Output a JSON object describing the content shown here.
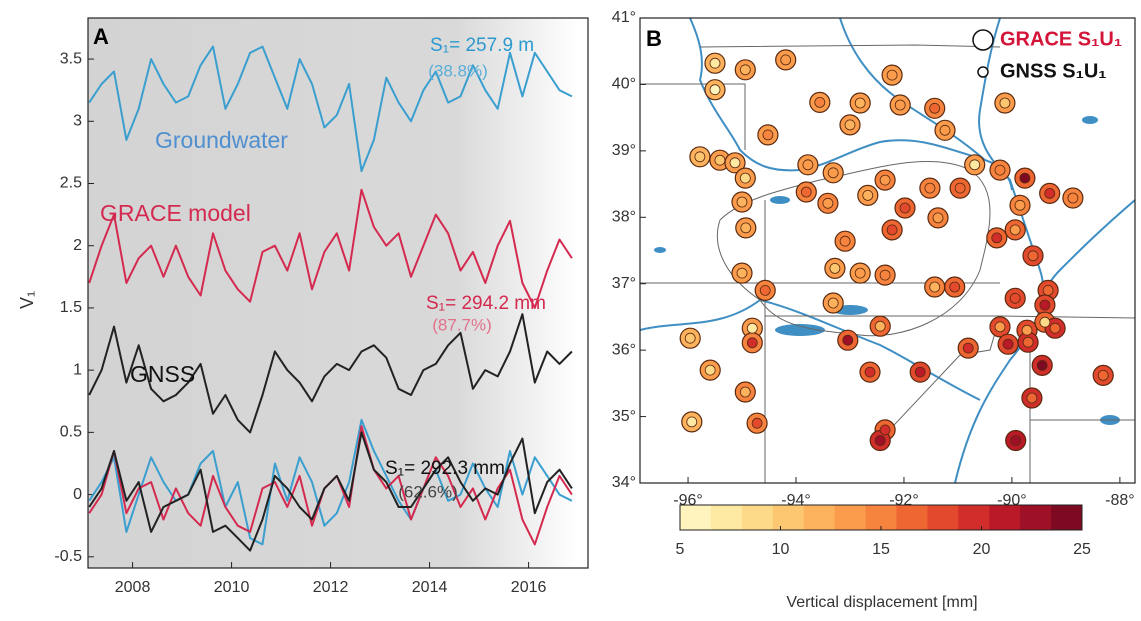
{
  "chart_data": [
    {
      "type": "line",
      "panel_label": "A",
      "y_label": "V₁",
      "xlim": [
        2007.1,
        2017.2
      ],
      "xticks": [
        2008,
        2010,
        2012,
        2014,
        2016
      ],
      "ylim": [
        -0.59,
        3.83
      ],
      "yticks": [
        -0.5,
        0,
        0.5,
        1,
        1.5,
        2,
        2.5,
        3,
        3.5
      ],
      "x": [
        2007.125,
        2007.375,
        2007.625,
        2007.875,
        2008.125,
        2008.375,
        2008.625,
        2008.875,
        2009.125,
        2009.375,
        2009.625,
        2009.875,
        2010.125,
        2010.375,
        2010.625,
        2010.875,
        2011.125,
        2011.375,
        2011.625,
        2011.875,
        2012.125,
        2012.375,
        2012.625,
        2012.875,
        2013.125,
        2013.375,
        2013.625,
        2013.875,
        2014.125,
        2014.375,
        2014.625,
        2014.875,
        2015.125,
        2015.375,
        2015.625,
        2015.875,
        2016.125,
        2016.375,
        2016.625,
        2016.875
      ],
      "series": [
        {
          "name": "Groundwater",
          "color": "#3a9fcf",
          "label_color": "#4f8fd0",
          "values": [
            3.15,
            3.3,
            3.4,
            2.85,
            3.1,
            3.5,
            3.3,
            3.15,
            3.2,
            3.45,
            3.6,
            3.1,
            3.3,
            3.55,
            3.6,
            3.35,
            3.1,
            3.5,
            3.3,
            2.95,
            3.05,
            3.3,
            2.6,
            2.85,
            3.35,
            3.15,
            3.0,
            3.25,
            3.4,
            3.15,
            3.2,
            3.45,
            3.25,
            3.1,
            3.55,
            3.2,
            3.55,
            3.4,
            3.25,
            3.2
          ]
        },
        {
          "name": "GRACE model",
          "color": "#d42a4f",
          "label_color": "#d42a4f",
          "values": [
            1.7,
            2.0,
            2.25,
            1.7,
            1.9,
            2.0,
            1.75,
            2.0,
            1.75,
            1.6,
            2.1,
            1.8,
            1.65,
            1.55,
            1.95,
            2.0,
            1.8,
            2.1,
            1.65,
            1.95,
            2.1,
            1.8,
            2.45,
            2.15,
            2.0,
            2.1,
            1.75,
            2.0,
            2.25,
            2.1,
            1.8,
            1.95,
            1.7,
            2.0,
            2.2,
            1.7,
            1.5,
            1.8,
            2.05,
            1.9
          ]
        },
        {
          "name": "GNSS",
          "color": "#222222",
          "label_color": "#111111",
          "values": [
            0.8,
            1.0,
            1.35,
            0.9,
            1.2,
            0.85,
            0.75,
            0.8,
            0.9,
            1.05,
            0.65,
            0.8,
            0.6,
            0.5,
            0.8,
            1.15,
            1.0,
            0.9,
            0.75,
            0.95,
            1.05,
            1.0,
            1.15,
            1.2,
            1.1,
            0.85,
            0.8,
            1.0,
            1.05,
            1.2,
            1.3,
            0.85,
            1.0,
            0.95,
            1.15,
            1.45,
            0.9,
            1.15,
            1.05,
            1.15
          ]
        },
        {
          "color": "#3a9fcf",
          "values": [
            -0.05,
            0.1,
            0.3,
            -0.3,
            0.0,
            0.3,
            0.1,
            -0.05,
            0.0,
            0.25,
            0.35,
            -0.1,
            0.1,
            -0.35,
            -0.4,
            0.25,
            -0.05,
            0.3,
            0.1,
            -0.25,
            -0.15,
            0.1,
            0.6,
            0.35,
            0.15,
            -0.05,
            -0.2,
            0.05,
            0.2,
            -0.05,
            0.0,
            0.25,
            0.05,
            -0.1,
            0.35,
            0.0,
            0.3,
            0.15,
            0.0,
            -0.05
          ]
        },
        {
          "color": "#d42a4f",
          "values": [
            -0.15,
            0.0,
            0.35,
            -0.15,
            0.05,
            0.1,
            -0.2,
            0.05,
            -0.15,
            -0.25,
            0.15,
            -0.1,
            -0.25,
            -0.3,
            0.05,
            0.1,
            -0.1,
            0.15,
            -0.25,
            0.05,
            0.15,
            -0.1,
            0.55,
            0.2,
            0.05,
            0.15,
            -0.2,
            0.05,
            0.3,
            0.15,
            -0.1,
            0.05,
            -0.2,
            0.05,
            0.2,
            -0.2,
            -0.4,
            -0.1,
            0.15,
            0.0
          ]
        },
        {
          "color": "#222222",
          "values": [
            -0.1,
            0.05,
            0.35,
            -0.05,
            0.1,
            -0.3,
            -0.1,
            -0.05,
            0.0,
            0.2,
            -0.3,
            -0.25,
            -0.35,
            -0.45,
            -0.2,
            0.15,
            0.05,
            -0.1,
            -0.2,
            0.05,
            0.15,
            -0.05,
            0.5,
            0.2,
            0.1,
            -0.1,
            -0.1,
            0.05,
            0.2,
            0.3,
            0.1,
            -0.05,
            0.05,
            0.0,
            0.25,
            0.45,
            -0.15,
            0.1,
            0.2,
            0.05
          ]
        }
      ],
      "annotations": [
        {
          "text": "S₁= 257.9 m",
          "color": "#2a9ad0"
        },
        {
          "text": "(38.8%)",
          "color": "#5aaed8"
        },
        {
          "text": "S₁= 294.2 mm",
          "color": "#d42a4f"
        },
        {
          "text": "(87.7%)",
          "color": "#e0728a"
        },
        {
          "text": "S₁= 292.3 mm",
          "color": "#111111"
        },
        {
          "text": "(62.6%)",
          "color": "#444444"
        }
      ]
    },
    {
      "type": "scatter",
      "panel_label": "B",
      "xlim": [
        -96.89,
        -87.72
      ],
      "ylim": [
        34,
        41
      ],
      "xticks": [
        {
          "value": -96,
          "label": "-96°"
        },
        {
          "value": -94,
          "label": "-94°"
        },
        {
          "value": -92,
          "label": "-92°"
        },
        {
          "value": -90,
          "label": "-90°"
        },
        {
          "value": -88,
          "label": "-88°"
        }
      ],
      "yticks": [
        {
          "value": 34,
          "label": "34°"
        },
        {
          "value": 35,
          "label": "35°"
        },
        {
          "value": 36,
          "label": "36°"
        },
        {
          "value": 37,
          "label": "37°"
        },
        {
          "value": 38,
          "label": "38°"
        },
        {
          "value": 39,
          "label": "39°"
        },
        {
          "value": 40,
          "label": "40°"
        },
        {
          "value": 41,
          "label": "41°"
        }
      ],
      "x": [
        -95.5,
        -95.5,
        -94.94,
        -94.19,
        -92.22,
        -93.56,
        -92.81,
        -92.07,
        -91.43,
        -91.24,
        -93.0,
        -94.52,
        -90.13,
        -95.78,
        -95.41,
        -95.13,
        -94.94,
        -93.78,
        -93.31,
        -93.81,
        -95.0,
        -93.41,
        -92.67,
        -92.35,
        -91.52,
        -90.96,
        -90.69,
        -90.22,
        -89.76,
        -89.3,
        -88.87,
        -89.85,
        -91.98,
        -91.37,
        -94.93,
        -93.09,
        -92.22,
        -89.94,
        -90.28,
        -89.61,
        -95.0,
        -93.28,
        -92.81,
        -92.35,
        -94.57,
        -91.43,
        -91.06,
        -93.31,
        -89.94,
        -89.33,
        -89.39,
        -95.96,
        -94.81,
        -94.81,
        -93.04,
        -92.44,
        -90.22,
        -89.72,
        -89.39,
        -89.2,
        -90.81,
        -90.07,
        -89.7,
        -89.44,
        -95.59,
        -92.63,
        -91.7,
        -94.94,
        -89.63,
        -88.31,
        -95.93,
        -94.72,
        -92.35,
        -92.44,
        -89.93
      ],
      "y": [
        40.32,
        39.92,
        40.22,
        40.37,
        40.14,
        39.73,
        39.72,
        39.69,
        39.64,
        39.31,
        39.39,
        39.24,
        39.72,
        38.91,
        38.86,
        38.82,
        38.59,
        38.79,
        38.67,
        38.38,
        38.23,
        38.21,
        38.33,
        38.56,
        38.44,
        38.44,
        38.79,
        38.71,
        38.59,
        38.36,
        38.29,
        38.18,
        38.14,
        37.99,
        37.84,
        37.64,
        37.81,
        37.81,
        37.69,
        37.42,
        37.16,
        37.23,
        37.16,
        37.13,
        36.9,
        36.95,
        36.95,
        36.71,
        36.78,
        36.9,
        36.68,
        36.18,
        36.33,
        36.11,
        36.15,
        36.36,
        36.35,
        36.3,
        36.42,
        36.33,
        36.03,
        36.09,
        36.12,
        35.77,
        35.7,
        35.67,
        35.67,
        35.37,
        35.28,
        35.62,
        34.92,
        34.9,
        34.8,
        34.64,
        34.64
      ],
      "series": [
        {
          "name": "GRACE S₁U₁",
          "color": "#d4153a",
          "values": [
            12,
            12,
            13,
            13,
            14,
            14,
            14,
            14,
            15,
            14,
            13,
            14,
            13,
            12,
            13,
            13,
            13,
            14,
            14,
            15,
            13,
            15,
            14,
            15,
            15,
            16,
            14,
            15,
            17,
            16,
            15,
            15,
            16,
            15,
            13,
            15,
            16,
            17,
            17,
            18,
            13,
            14,
            14,
            15,
            15,
            15,
            16,
            14,
            18,
            18,
            18,
            12,
            14,
            15,
            16,
            16,
            18,
            18,
            17,
            19,
            17,
            18,
            19,
            20,
            13,
            16,
            18,
            15,
            19,
            18,
            12,
            15,
            17,
            19,
            21
          ]
        },
        {
          "name": "GNSS S₁U₁",
          "color": "#111111",
          "values": [
            7,
            6,
            12,
            13,
            13,
            15,
            12,
            14,
            16,
            13,
            12,
            15,
            11,
            10,
            11,
            8,
            9,
            14,
            13,
            17,
            12,
            13,
            12,
            13,
            15,
            17,
            7,
            15,
            24,
            19,
            15,
            14,
            18,
            14,
            12,
            15,
            18,
            14,
            20,
            17,
            12,
            11,
            13,
            15,
            16,
            12,
            18,
            12,
            18,
            16,
            21,
            11,
            8,
            20,
            22,
            12,
            14,
            13,
            9,
            17,
            19,
            21,
            17,
            24,
            9,
            20,
            21,
            12,
            16,
            16,
            7,
            18,
            20,
            22,
            22
          ]
        }
      ],
      "colorbar": {
        "label": "Vertical displacement [mm]",
        "lim": [
          5,
          25
        ],
        "ticks": [
          5,
          10,
          15,
          20,
          25
        ],
        "colors": [
          "#fff4bd",
          "#fee9a2",
          "#fdda8a",
          "#fdc771",
          "#fdb35d",
          "#fa9c4c",
          "#f6833e",
          "#ee6733",
          "#e34a2d",
          "#d12d2a",
          "#ba1a28",
          "#9d1026",
          "#7e0a22"
        ]
      }
    }
  ]
}
